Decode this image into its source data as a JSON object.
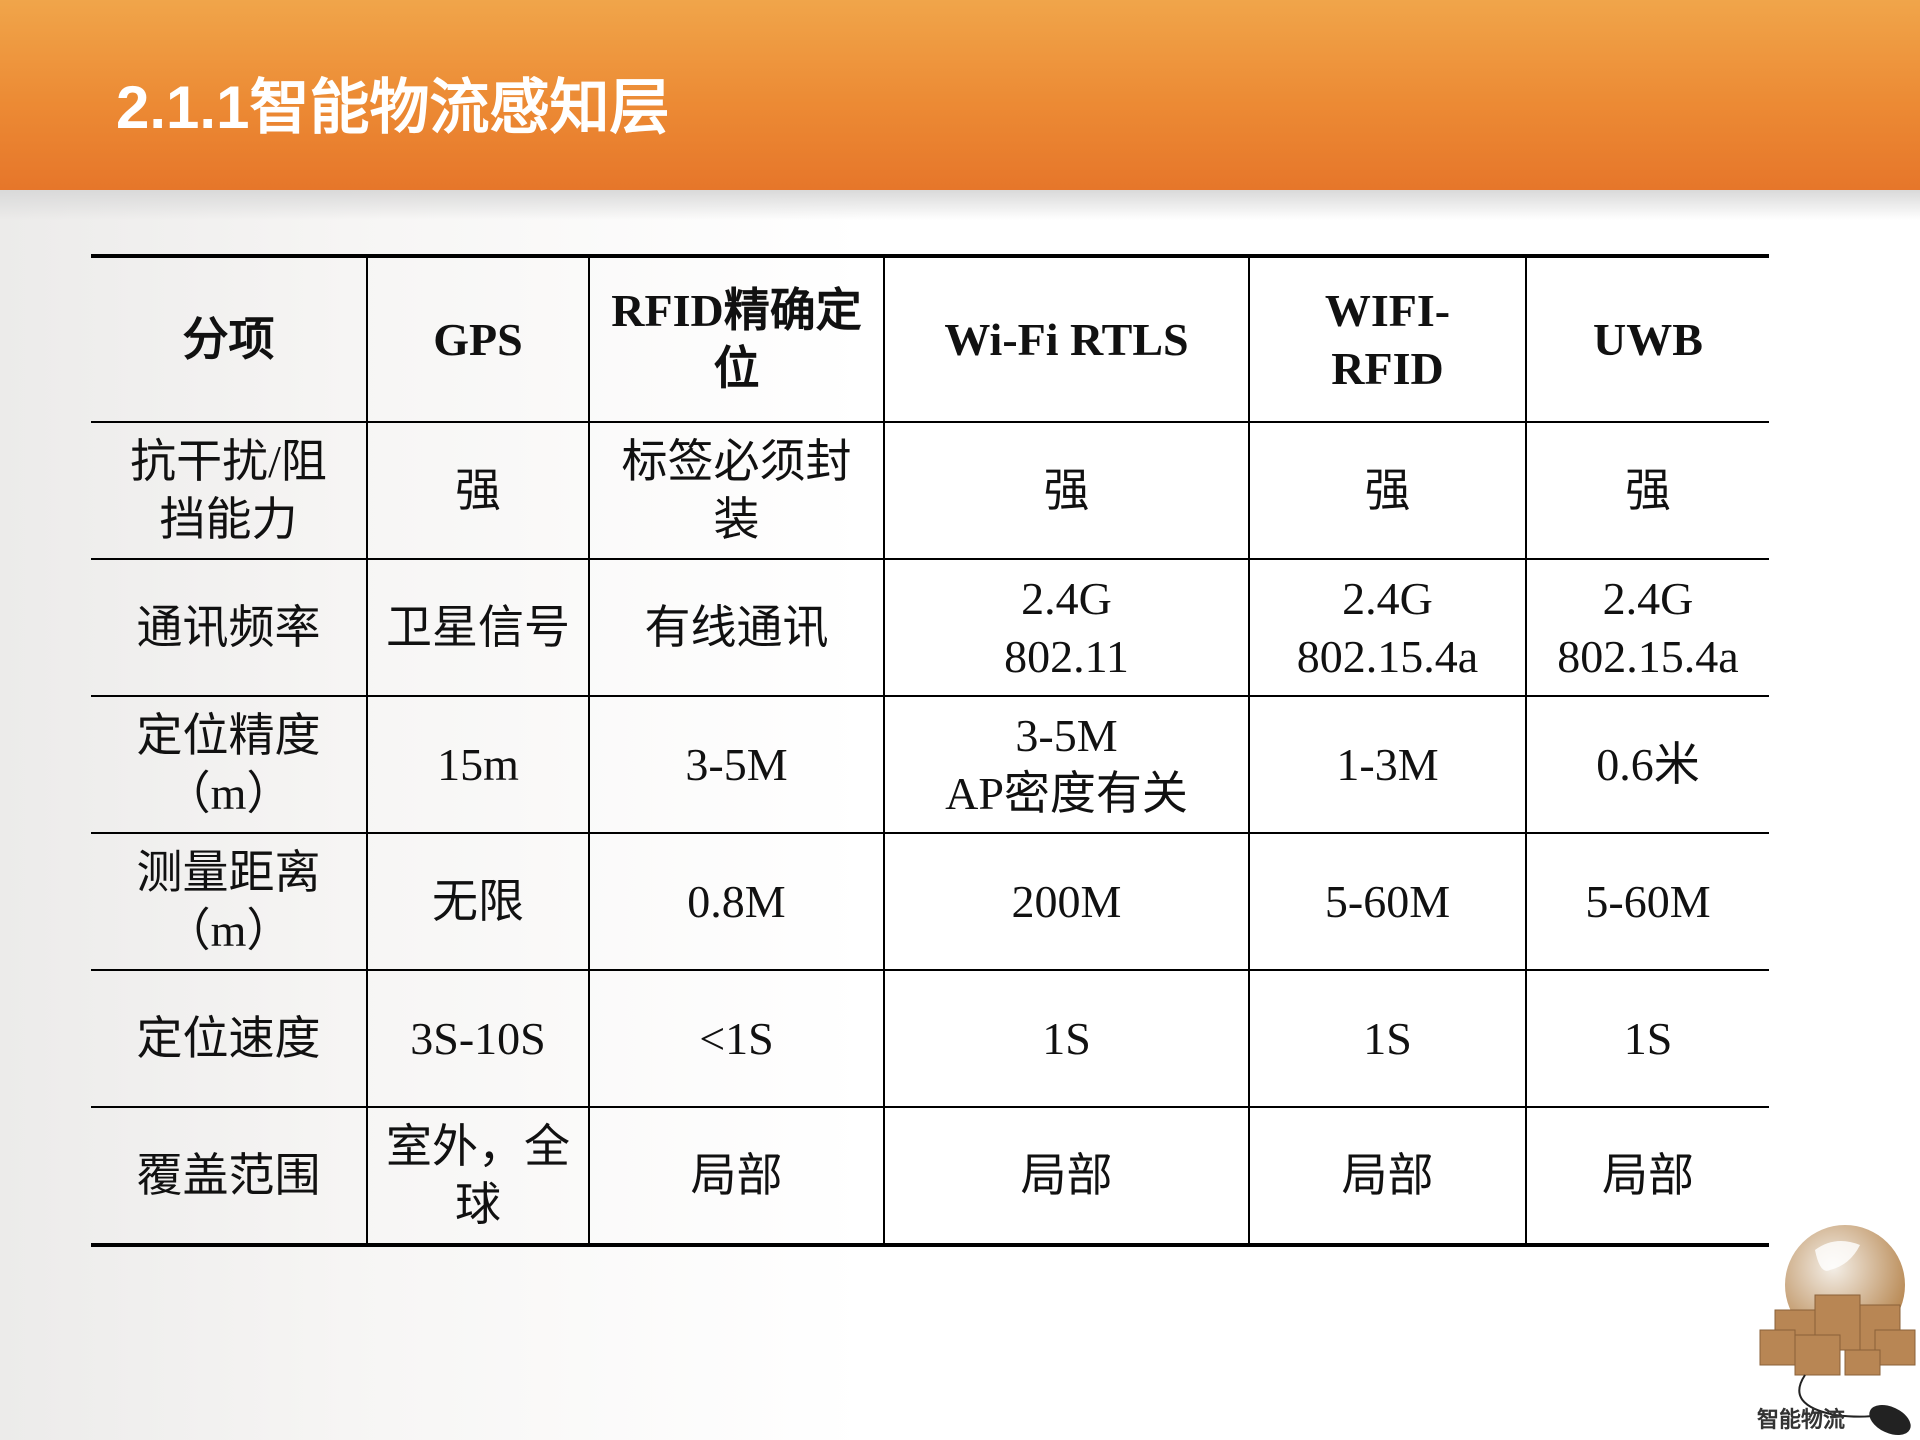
{
  "slide": {
    "title": "2.1.1智能物流感知层"
  },
  "table": {
    "headers": [
      "分项",
      "GPS",
      "RFID精确定\n位",
      "Wi-Fi RTLS",
      "WIFI-\nRFID",
      "UWB"
    ],
    "rows": [
      [
        "抗干扰/阻\n挡能力",
        "强",
        "标签必须封\n装",
        "强",
        "强",
        "强"
      ],
      [
        "通讯频率",
        "卫星信号",
        "有线通讯",
        "2.4G\n802.11",
        "2.4G\n802.15.4a",
        "2.4G\n802.15.4a"
      ],
      [
        "定位精度\n（m）",
        "15m",
        "3-5M",
        "3-5M\nAP密度有关",
        "1-3M",
        "0.6米"
      ],
      [
        "测量距离\n（m）",
        "无限",
        "0.8M",
        "200M",
        "5-60M",
        "5-60M"
      ],
      [
        "定位速度",
        "3S-10S",
        "<1S",
        "1S",
        "1S",
        "1S"
      ],
      [
        "覆盖范围",
        "室外，全\n球",
        "局部",
        "局部",
        "局部",
        "局部"
      ]
    ]
  },
  "logo": {
    "text": "智能物流",
    "icon": "globe-boxes-mouse-icon"
  },
  "colors": {
    "header": "#ec8a34",
    "title": "#ffffff"
  }
}
